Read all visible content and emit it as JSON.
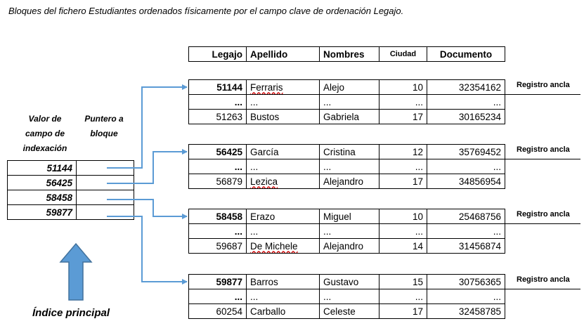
{
  "caption": "Bloques del fichero Estudiantes ordenados físicamente por el campo clave de ordenación Legajo.",
  "headers": [
    "Legajo",
    "Apellido",
    "Nombres",
    "Ciudad",
    "Documento"
  ],
  "blocks": [
    {
      "rows": [
        [
          "51144",
          "Ferraris",
          "Alejo",
          "10",
          "32354162"
        ],
        [
          "...",
          "...",
          "...",
          "...",
          "..."
        ],
        [
          "51263",
          "Bustos",
          "Gabriela",
          "17",
          "30165234"
        ]
      ],
      "anchor": "Registro ancla"
    },
    {
      "rows": [
        [
          "56425",
          "García",
          "Cristina",
          "12",
          "35769452"
        ],
        [
          "...",
          "...",
          "...",
          "...",
          "..."
        ],
        [
          "56879",
          "Lezica",
          "Alejandro",
          "17",
          "34856954"
        ]
      ],
      "anchor": "Registro ancla"
    },
    {
      "rows": [
        [
          "58458",
          "Erazo",
          "Miguel",
          "10",
          "25468756"
        ],
        [
          "...",
          "...",
          "...",
          "...",
          "..."
        ],
        [
          "59687",
          "De Michele",
          "Alejandro",
          "14",
          "31456874"
        ]
      ],
      "anchor": "Registro ancla"
    },
    {
      "rows": [
        [
          "59877",
          "Barros",
          "Gustavo",
          "15",
          "30756365"
        ],
        [
          "...",
          "...",
          "...",
          "...",
          "..."
        ],
        [
          "60254",
          "Carballo",
          "Celeste",
          "17",
          "32458785"
        ]
      ],
      "anchor": "Registro ancla"
    }
  ],
  "index": {
    "col1_header": [
      "Valor de",
      "campo de",
      "indexación"
    ],
    "col2_header": [
      "Puntero a",
      "bloque"
    ],
    "values": [
      "51144",
      "56425",
      "58458",
      "59877"
    ],
    "label": "Índice principal"
  },
  "colors": {
    "arrow": "#5b9bd5",
    "big_arrow": "#5b9bd5",
    "big_arrow_border": "#41719c"
  }
}
